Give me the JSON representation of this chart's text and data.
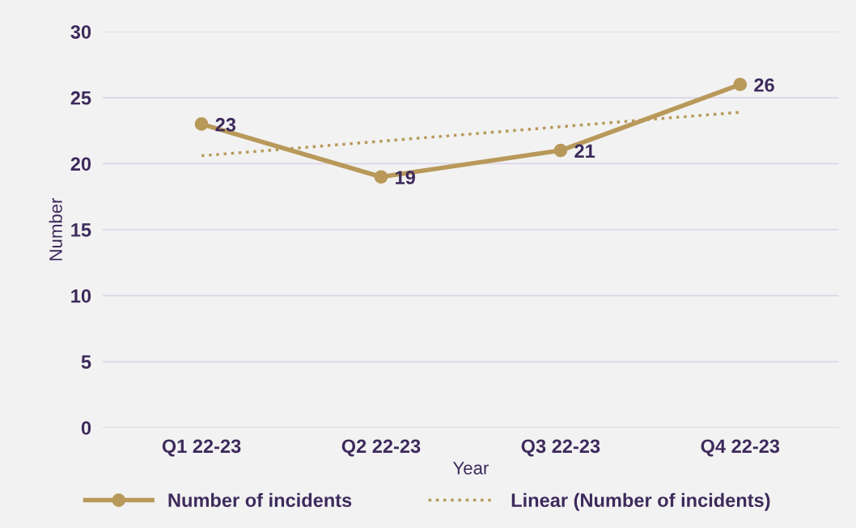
{
  "chart_data": {
    "type": "line",
    "xlabel": "Year",
    "ylabel": "Number",
    "categories": [
      "Q1 22-23",
      "Q2 22-23",
      "Q3 22-23",
      "Q4 22-23"
    ],
    "series": [
      {
        "name": "Number of incidents",
        "color": "#b8995a",
        "values": [
          23,
          19,
          21,
          26
        ],
        "marker": "circle",
        "line_style": "solid",
        "value_labels": [
          "23",
          "19",
          "21",
          "26"
        ]
      },
      {
        "name": "Linear (Number of incidents)",
        "color": "#b8995a",
        "type": "line",
        "x": [
          "Q1 22-23",
          "Q2 22-23",
          "Q3 22-23",
          "Q4 22-23"
        ],
        "values": [
          20.6,
          21.7,
          22.8,
          23.9
        ],
        "marker": "none",
        "line_style": "dotted"
      }
    ],
    "ylim": [
      0,
      30
    ],
    "yticks": [
      0,
      5,
      10,
      15,
      20,
      25,
      30
    ],
    "grid": "y",
    "legend": "bottom"
  }
}
